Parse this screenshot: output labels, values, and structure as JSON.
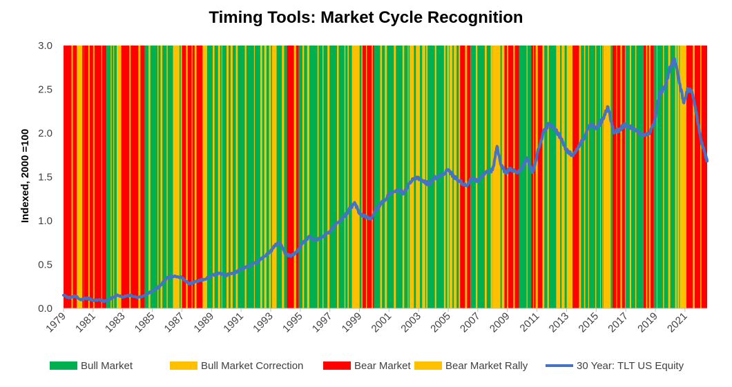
{
  "chart_data": {
    "type": "area",
    "title": "Timing Tools: Market Cycle Recognition",
    "xlabel": "",
    "ylabel": "Indexed, 2000 =100",
    "ylim": [
      0.0,
      3.0
    ],
    "yticks": [
      "0.0",
      "0.5",
      "1.0",
      "1.5",
      "2.0",
      "2.5",
      "3.0"
    ],
    "xlim": [
      1979,
      2022.5
    ],
    "xticks": [
      "1979",
      "1981",
      "1983",
      "1985",
      "1987",
      "1989",
      "1991",
      "1993",
      "1995",
      "1997",
      "1999",
      "2001",
      "2003",
      "2005",
      "2007",
      "2009",
      "2011",
      "2013",
      "2015",
      "2017",
      "2019",
      "2021"
    ],
    "grid": false,
    "legend_position": "bottom",
    "regime_colors": {
      "bull": "#00b050",
      "bull_correction": "#ffc000",
      "bear": "#ff0000",
      "bear_rally": "#ffc000"
    },
    "legend": [
      {
        "key": "bull",
        "label": "Bull Market",
        "color": "#00b050",
        "kind": "box"
      },
      {
        "key": "bull_correction",
        "label": "Bull Market Correction",
        "color": "#ffc000",
        "kind": "box"
      },
      {
        "key": "bear",
        "label": "Bear Market",
        "color": "#ff0000",
        "kind": "box"
      },
      {
        "key": "bear_rally",
        "label": "Bear Market Rally",
        "color": "#ffc000",
        "kind": "box"
      },
      {
        "key": "line",
        "label": "30 Year: TLT US Equity",
        "color": "#4472c4",
        "kind": "line"
      }
    ],
    "regimes": [
      {
        "start": 1979.0,
        "end": 1979.9,
        "state": "bear"
      },
      {
        "start": 1979.9,
        "end": 1980.4,
        "state": "bear_rally"
      },
      {
        "start": 1980.4,
        "end": 1981.9,
        "state": "bear"
      },
      {
        "start": 1981.9,
        "end": 1982.6,
        "state": "bull"
      },
      {
        "start": 1982.6,
        "end": 1982.9,
        "state": "bull_correction"
      },
      {
        "start": 1982.9,
        "end": 1984.5,
        "state": "bear"
      },
      {
        "start": 1984.5,
        "end": 1986.4,
        "state": "bull"
      },
      {
        "start": 1986.4,
        "end": 1987.0,
        "state": "bull_correction"
      },
      {
        "start": 1987.0,
        "end": 1988.4,
        "state": "bear"
      },
      {
        "start": 1988.4,
        "end": 1988.7,
        "state": "bear_rally"
      },
      {
        "start": 1988.7,
        "end": 1992.9,
        "state": "bull"
      },
      {
        "start": 1992.9,
        "end": 1993.4,
        "state": "bull_correction"
      },
      {
        "start": 1993.4,
        "end": 1994.1,
        "state": "bull"
      },
      {
        "start": 1994.1,
        "end": 1994.9,
        "state": "bear"
      },
      {
        "start": 1994.9,
        "end": 1998.5,
        "state": "bull"
      },
      {
        "start": 1998.5,
        "end": 1999.2,
        "state": "bull_correction"
      },
      {
        "start": 1999.2,
        "end": 2000.0,
        "state": "bear"
      },
      {
        "start": 2000.0,
        "end": 2002.4,
        "state": "bull"
      },
      {
        "start": 2002.4,
        "end": 2003.6,
        "state": "bull_correction"
      },
      {
        "start": 2003.6,
        "end": 2005.1,
        "state": "bull"
      },
      {
        "start": 2005.1,
        "end": 2005.8,
        "state": "bull_correction"
      },
      {
        "start": 2005.8,
        "end": 2006.5,
        "state": "bear"
      },
      {
        "start": 2006.5,
        "end": 2008.0,
        "state": "bull"
      },
      {
        "start": 2008.0,
        "end": 2008.8,
        "state": "bull_correction"
      },
      {
        "start": 2008.8,
        "end": 2009.8,
        "state": "bear"
      },
      {
        "start": 2009.8,
        "end": 2010.6,
        "state": "bull"
      },
      {
        "start": 2010.6,
        "end": 2011.5,
        "state": "bear"
      },
      {
        "start": 2011.5,
        "end": 2012.3,
        "state": "bull"
      },
      {
        "start": 2012.3,
        "end": 2013.4,
        "state": "bull_correction"
      },
      {
        "start": 2013.4,
        "end": 2014.0,
        "state": "bear"
      },
      {
        "start": 2014.0,
        "end": 2015.5,
        "state": "bull"
      },
      {
        "start": 2015.5,
        "end": 2016.1,
        "state": "bull_correction"
      },
      {
        "start": 2016.1,
        "end": 2017.0,
        "state": "bear"
      },
      {
        "start": 2017.0,
        "end": 2018.2,
        "state": "bull"
      },
      {
        "start": 2018.2,
        "end": 2018.9,
        "state": "bear"
      },
      {
        "start": 2018.9,
        "end": 2020.5,
        "state": "bull"
      },
      {
        "start": 2020.5,
        "end": 2021.1,
        "state": "bull_correction"
      },
      {
        "start": 2021.1,
        "end": 2022.5,
        "state": "bear"
      }
    ],
    "series": [
      {
        "name": "30 Year: TLT US Equity",
        "color": "#4472c4",
        "x": [
          1979.0,
          1979.4,
          1979.8,
          1980.2,
          1980.6,
          1981.0,
          1981.4,
          1981.8,
          1982.2,
          1982.6,
          1983.0,
          1983.5,
          1984.0,
          1984.5,
          1985.0,
          1985.5,
          1986.0,
          1986.5,
          1987.0,
          1987.5,
          1988.0,
          1988.5,
          1989.0,
          1989.5,
          1990.0,
          1990.5,
          1991.0,
          1991.5,
          1992.0,
          1992.5,
          1993.0,
          1993.3,
          1993.6,
          1994.0,
          1994.4,
          1994.8,
          1995.2,
          1995.6,
          1996.0,
          1996.5,
          1997.0,
          1997.5,
          1998.0,
          1998.4,
          1998.7,
          1999.0,
          1999.4,
          1999.8,
          2000.2,
          2000.6,
          2001.0,
          2001.5,
          2002.0,
          2002.5,
          2002.9,
          2003.3,
          2003.7,
          2004.0,
          2004.5,
          2005.0,
          2005.4,
          2005.8,
          2006.2,
          2006.6,
          2007.0,
          2007.5,
          2008.0,
          2008.3,
          2008.6,
          2008.9,
          2009.2,
          2009.6,
          2010.0,
          2010.3,
          2010.7,
          2011.0,
          2011.4,
          2011.8,
          2012.2,
          2012.6,
          2013.0,
          2013.4,
          2013.8,
          2014.2,
          2014.6,
          2015.0,
          2015.4,
          2015.8,
          2016.2,
          2016.6,
          2017.0,
          2017.5,
          2018.0,
          2018.5,
          2018.9,
          2019.3,
          2019.7,
          2020.0,
          2020.3,
          2020.6,
          2020.9,
          2021.2,
          2021.5,
          2021.8,
          2022.1,
          2022.3,
          2022.5
        ],
        "y": [
          0.15,
          0.12,
          0.14,
          0.1,
          0.12,
          0.09,
          0.1,
          0.08,
          0.11,
          0.15,
          0.13,
          0.15,
          0.12,
          0.15,
          0.2,
          0.25,
          0.35,
          0.37,
          0.35,
          0.28,
          0.31,
          0.33,
          0.37,
          0.4,
          0.38,
          0.4,
          0.45,
          0.48,
          0.52,
          0.58,
          0.65,
          0.72,
          0.75,
          0.62,
          0.6,
          0.65,
          0.75,
          0.82,
          0.78,
          0.82,
          0.88,
          0.98,
          1.05,
          1.15,
          1.2,
          1.08,
          1.05,
          1.02,
          1.15,
          1.22,
          1.3,
          1.35,
          1.32,
          1.45,
          1.5,
          1.45,
          1.42,
          1.48,
          1.52,
          1.58,
          1.5,
          1.45,
          1.4,
          1.48,
          1.45,
          1.55,
          1.58,
          1.85,
          1.62,
          1.55,
          1.6,
          1.55,
          1.6,
          1.72,
          1.55,
          1.75,
          2.0,
          2.1,
          2.05,
          1.95,
          1.8,
          1.75,
          1.85,
          1.95,
          2.1,
          2.05,
          2.15,
          2.3,
          2.0,
          2.05,
          2.1,
          2.05,
          2.0,
          1.98,
          2.1,
          2.45,
          2.55,
          2.75,
          2.85,
          2.6,
          2.35,
          2.5,
          2.45,
          2.2,
          1.9,
          1.8,
          1.68
        ]
      }
    ]
  }
}
